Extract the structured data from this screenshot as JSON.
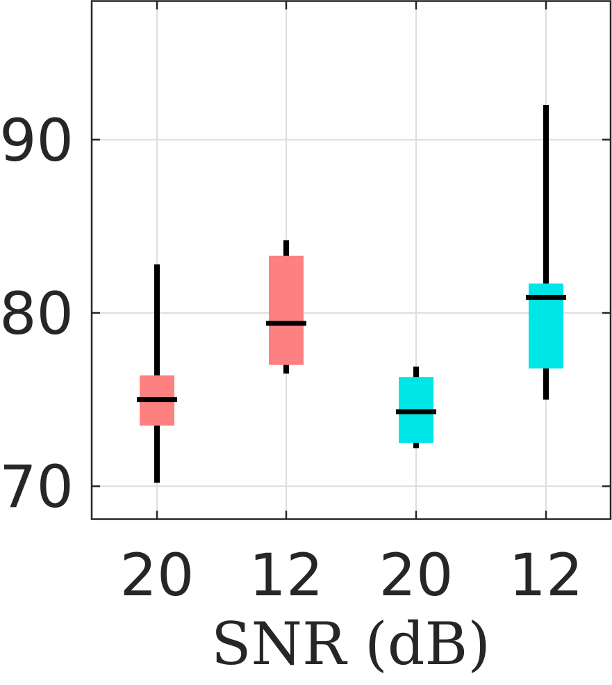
{
  "chart_data": {
    "type": "box",
    "xlabel": "SNR (dB)",
    "ylabel": "",
    "ylim": [
      68.1,
      98.0
    ],
    "yticks": [
      70,
      80,
      90
    ],
    "grid": true,
    "categories": [
      "20",
      "12",
      "20",
      "12"
    ],
    "boxes": [
      {
        "label": "20",
        "color": "#FF8080",
        "whisker_low": 70.2,
        "q1": 73.5,
        "median": 75.0,
        "q3": 76.4,
        "whisker_high": 82.8
      },
      {
        "label": "12",
        "color": "#FF8080",
        "whisker_low": 76.5,
        "q1": 77.0,
        "median": 79.4,
        "q3": 83.3,
        "whisker_high": 84.2
      },
      {
        "label": "20",
        "color": "#00E5E5",
        "whisker_low": 72.2,
        "q1": 72.5,
        "median": 74.3,
        "q3": 76.3,
        "whisker_high": 76.9
      },
      {
        "label": "12",
        "color": "#00E5E5",
        "whisker_low": 75.0,
        "q1": 76.8,
        "median": 80.9,
        "q3": 81.7,
        "whisker_high": 92.0
      }
    ]
  }
}
